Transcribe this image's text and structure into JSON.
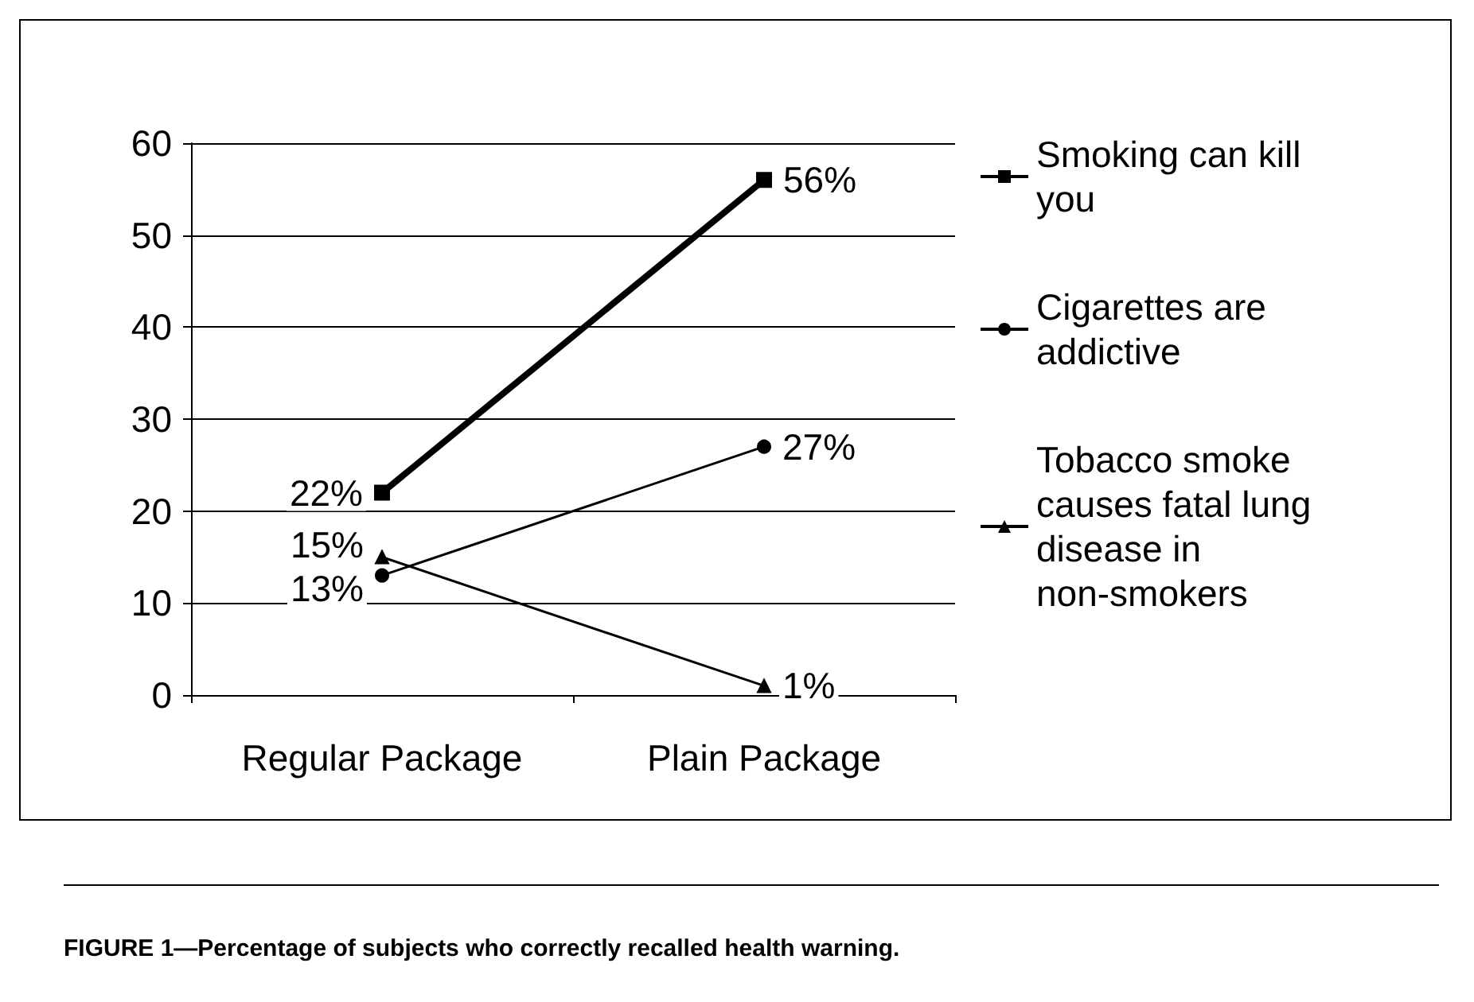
{
  "chart_data": {
    "type": "line",
    "title": "FIGURE 1—Percentage of subjects who correctly recalled health warning.",
    "categories": [
      "Regular Package",
      "Plain Package"
    ],
    "series": [
      {
        "name": "Smoking can kill you",
        "color": "#000000",
        "values": [
          22,
          56
        ],
        "value_labels": [
          "22%",
          "56%"
        ],
        "marker": "square"
      },
      {
        "name": "Cigarettes are addictive",
        "color": "#000000",
        "values": [
          13,
          27
        ],
        "value_labels": [
          "13%",
          "27%"
        ],
        "marker": "circle"
      },
      {
        "name": "Tobacco smoke causes fatal lung disease in non-smokers",
        "color": "#000000",
        "values": [
          15,
          1
        ],
        "value_labels": [
          "15%",
          "1%"
        ],
        "marker": "triangle"
      }
    ],
    "ylim": [
      0,
      60
    ],
    "yticks": [
      0,
      10,
      20,
      30,
      40,
      50,
      60
    ],
    "grid": "y",
    "legend": "right"
  }
}
